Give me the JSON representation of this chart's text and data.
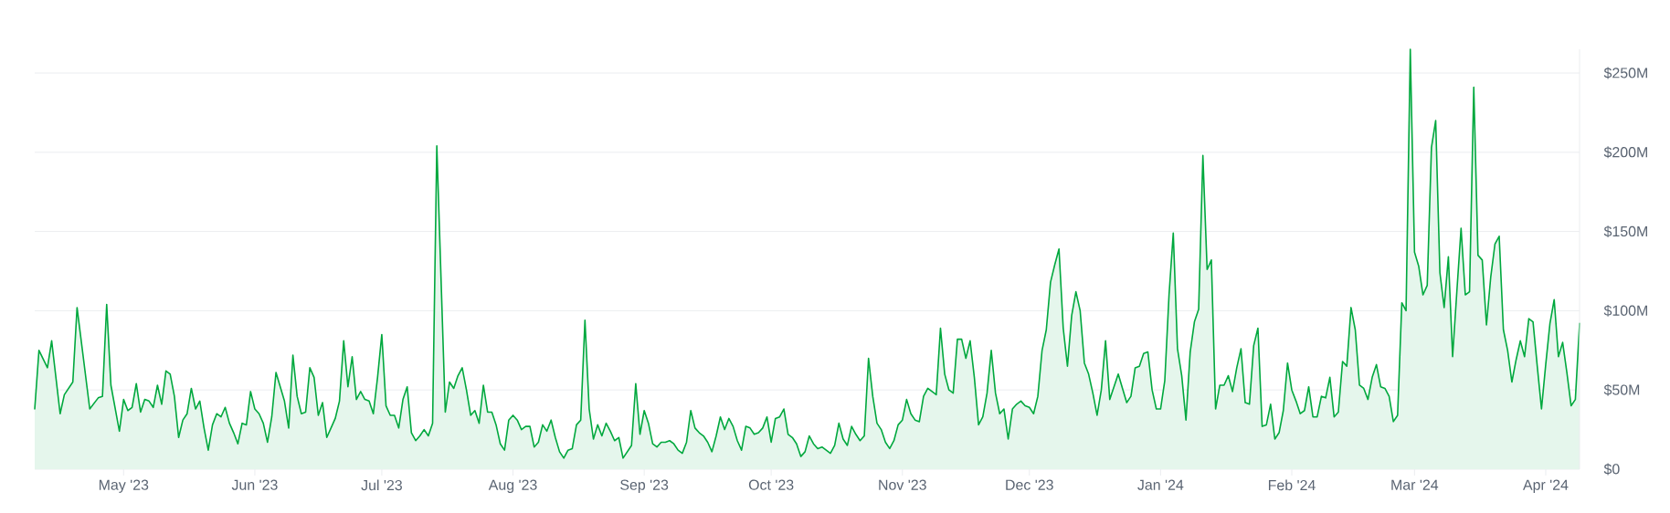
{
  "chart_data": {
    "type": "area",
    "x": [
      "2023-04-10",
      "2023-04-11",
      "2023-04-13",
      "2023-04-14",
      "2023-04-16",
      "2023-04-17",
      "2023-04-19",
      "2023-04-20",
      "2023-04-23",
      "2023-04-25",
      "2023-04-26",
      "2023-04-27",
      "2023-04-28",
      "2023-04-30",
      "2023-05-01",
      "2023-05-02",
      "2023-05-03",
      "2023-05-04",
      "2023-05-05",
      "2023-05-06",
      "2023-05-07",
      "2023-05-08",
      "2023-05-09",
      "2023-05-10",
      "2023-05-11",
      "2023-05-12",
      "2023-05-13",
      "2023-05-14",
      "2023-05-15",
      "2023-05-16",
      "2023-05-17",
      "2023-05-18",
      "2023-05-19",
      "2023-05-20",
      "2023-05-21",
      "2023-05-22",
      "2023-05-23",
      "2023-05-24",
      "2023-05-25",
      "2023-05-26",
      "2023-05-27",
      "2023-05-28",
      "2023-05-29",
      "2023-05-30",
      "2023-05-31",
      "2023-06-01",
      "2023-06-02",
      "2023-06-03",
      "2023-06-04",
      "2023-06-05",
      "2023-06-06",
      "2023-06-08",
      "2023-06-09",
      "2023-06-10",
      "2023-06-11",
      "2023-06-12",
      "2023-06-13",
      "2023-06-14",
      "2023-06-15",
      "2023-06-16",
      "2023-06-17",
      "2023-06-18",
      "2023-06-19",
      "2023-06-20",
      "2023-06-21",
      "2023-06-22",
      "2023-06-23",
      "2023-06-24",
      "2023-06-25",
      "2023-06-26",
      "2023-06-27",
      "2023-06-28",
      "2023-06-29",
      "2023-06-30",
      "2023-07-01",
      "2023-07-02",
      "2023-07-03",
      "2023-07-04",
      "2023-07-05",
      "2023-07-06",
      "2023-07-07",
      "2023-07-08",
      "2023-07-09",
      "2023-07-10",
      "2023-07-11",
      "2023-07-12",
      "2023-07-13",
      "2023-07-14",
      "2023-07-16",
      "2023-07-17",
      "2023-07-18",
      "2023-07-19",
      "2023-07-20",
      "2023-07-21",
      "2023-07-22",
      "2023-07-23",
      "2023-07-24",
      "2023-07-25",
      "2023-07-26",
      "2023-07-27",
      "2023-07-28",
      "2023-07-29",
      "2023-07-30",
      "2023-07-31",
      "2023-08-01",
      "2023-08-02",
      "2023-08-03",
      "2023-08-04",
      "2023-08-05",
      "2023-08-06",
      "2023-08-07",
      "2023-08-08",
      "2023-08-09",
      "2023-08-10",
      "2023-08-11",
      "2023-08-12",
      "2023-08-13",
      "2023-08-14",
      "2023-08-15",
      "2023-08-16",
      "2023-08-17",
      "2023-08-18",
      "2023-08-19",
      "2023-08-20",
      "2023-08-21",
      "2023-08-22",
      "2023-08-23",
      "2023-08-24",
      "2023-08-25",
      "2023-08-26",
      "2023-08-27",
      "2023-08-28",
      "2023-08-29",
      "2023-08-30",
      "2023-08-31",
      "2023-09-01",
      "2023-09-02",
      "2023-09-03",
      "2023-09-04",
      "2023-09-05",
      "2023-09-06",
      "2023-09-07",
      "2023-09-08",
      "2023-09-09",
      "2023-09-10",
      "2023-09-11",
      "2023-09-12",
      "2023-09-13",
      "2023-09-14",
      "2023-09-15",
      "2023-09-16",
      "2023-09-17",
      "2023-09-18",
      "2023-09-19",
      "2023-09-20",
      "2023-09-21",
      "2023-09-22",
      "2023-09-23",
      "2023-09-24",
      "2023-09-25",
      "2023-09-26",
      "2023-09-27",
      "2023-09-28",
      "2023-09-29",
      "2023-09-30",
      "2023-10-01",
      "2023-10-02",
      "2023-10-03",
      "2023-10-04",
      "2023-10-05",
      "2023-10-06",
      "2023-10-07",
      "2023-10-08",
      "2023-10-09",
      "2023-10-10",
      "2023-10-11",
      "2023-10-12",
      "2023-10-13",
      "2023-10-14",
      "2023-10-15",
      "2023-10-16",
      "2023-10-17",
      "2023-10-18",
      "2023-10-19",
      "2023-10-20",
      "2023-10-21",
      "2023-10-22",
      "2023-10-23",
      "2023-10-24",
      "2023-10-25",
      "2023-10-26",
      "2023-10-27",
      "2023-10-28",
      "2023-10-29",
      "2023-10-30",
      "2023-10-31",
      "2023-11-01",
      "2023-11-02",
      "2023-11-03",
      "2023-11-04",
      "2023-11-05",
      "2023-11-06",
      "2023-11-07",
      "2023-11-08",
      "2023-11-09",
      "2023-11-10",
      "2023-11-11",
      "2023-11-12",
      "2023-11-13",
      "2023-11-14",
      "2023-11-15",
      "2023-11-16",
      "2023-11-17",
      "2023-11-18",
      "2023-11-19",
      "2023-11-20",
      "2023-11-21",
      "2023-11-22",
      "2023-11-23",
      "2023-11-24",
      "2023-11-25",
      "2023-11-26",
      "2023-11-27",
      "2023-11-28",
      "2023-11-29",
      "2023-11-30",
      "2023-12-01",
      "2023-12-02",
      "2023-12-03",
      "2023-12-04",
      "2023-12-05",
      "2023-12-06",
      "2023-12-07",
      "2023-12-08",
      "2023-12-09",
      "2023-12-10",
      "2023-12-11",
      "2023-12-12",
      "2023-12-13",
      "2023-12-14",
      "2023-12-15",
      "2023-12-16",
      "2023-12-17",
      "2023-12-18",
      "2023-12-19",
      "2023-12-20",
      "2023-12-21",
      "2023-12-22",
      "2023-12-23",
      "2023-12-24",
      "2023-12-25",
      "2023-12-26",
      "2023-12-27",
      "2023-12-28",
      "2023-12-29",
      "2023-12-30",
      "2023-12-31",
      "2024-01-01",
      "2024-01-02",
      "2024-01-03",
      "2024-01-04",
      "2024-01-05",
      "2024-01-06",
      "2024-01-07",
      "2024-01-08",
      "2024-01-09",
      "2024-01-10",
      "2024-01-11",
      "2024-01-12",
      "2024-01-13",
      "2024-01-14",
      "2024-01-15",
      "2024-01-16",
      "2024-01-17",
      "2024-01-18",
      "2024-01-19",
      "2024-01-20",
      "2024-01-21",
      "2024-01-22",
      "2024-01-23",
      "2024-01-24",
      "2024-01-25",
      "2024-01-26",
      "2024-01-27",
      "2024-01-28",
      "2024-01-29",
      "2024-01-30",
      "2024-01-31",
      "2024-02-01",
      "2024-02-02",
      "2024-02-03",
      "2024-02-04",
      "2024-02-05",
      "2024-02-06",
      "2024-02-07",
      "2024-02-08",
      "2024-02-09",
      "2024-02-10",
      "2024-02-11",
      "2024-02-12",
      "2024-02-13",
      "2024-02-14",
      "2024-02-15",
      "2024-02-16",
      "2024-02-17",
      "2024-02-18",
      "2024-02-19",
      "2024-02-20",
      "2024-02-21",
      "2024-02-22",
      "2024-02-23",
      "2024-02-24",
      "2024-02-25",
      "2024-02-26",
      "2024-02-27",
      "2024-02-28",
      "2024-02-29",
      "2024-03-01",
      "2024-03-02",
      "2024-03-03",
      "2024-03-04",
      "2024-03-05",
      "2024-03-06",
      "2024-03-07",
      "2024-03-08",
      "2024-03-09",
      "2024-03-10",
      "2024-03-11",
      "2024-03-12",
      "2024-03-13",
      "2024-03-14",
      "2024-03-15",
      "2024-03-16",
      "2024-03-17",
      "2024-03-18",
      "2024-03-19",
      "2024-03-20",
      "2024-03-21",
      "2024-03-22",
      "2024-03-23",
      "2024-03-24",
      "2024-03-25",
      "2024-03-26",
      "2024-03-27",
      "2024-03-28",
      "2024-03-29",
      "2024-03-30",
      "2024-03-31",
      "2024-04-01",
      "2024-04-02",
      "2024-04-03",
      "2024-04-04",
      "2024-04-05",
      "2024-04-06",
      "2024-04-07",
      "2024-04-08",
      "2024-04-09"
    ],
    "series": [
      {
        "color": "#00a83e",
        "values": [
          38,
          75,
          64,
          81,
          35,
          47,
          55,
          102,
          38,
          45,
          46,
          104,
          53,
          24,
          44,
          37,
          39,
          54,
          36,
          44,
          43,
          39,
          53,
          41,
          62,
          60,
          46,
          20,
          31,
          35,
          51,
          38,
          43,
          26,
          12,
          28,
          35,
          33,
          39,
          29,
          23,
          16,
          29,
          28,
          49,
          38,
          35,
          29,
          17,
          33,
          61,
          43,
          26,
          72,
          46,
          35,
          36,
          64,
          58,
          34,
          42,
          20,
          26,
          32,
          43,
          81,
          52,
          71,
          44,
          49,
          44,
          43,
          35,
          58,
          85,
          40,
          34,
          34,
          26,
          44,
          52,
          23,
          18,
          21,
          25,
          21,
          29,
          204,
          36,
          55,
          51,
          59,
          64,
          50,
          34,
          37,
          29,
          53,
          36,
          36,
          28,
          16,
          12,
          31,
          34,
          31,
          25,
          27,
          27,
          14,
          17,
          28,
          24,
          31,
          20,
          11,
          7,
          12,
          13,
          28,
          31,
          94,
          38,
          19,
          28,
          21,
          29,
          24,
          18,
          20,
          7,
          11,
          15,
          54,
          22,
          37,
          29,
          16,
          14,
          17,
          17,
          18,
          16,
          12,
          10,
          17,
          37,
          26,
          23,
          21,
          17,
          11,
          21,
          33,
          25,
          32,
          27,
          18,
          12,
          27,
          26,
          22,
          23,
          26,
          33,
          17,
          32,
          33,
          38,
          22,
          20,
          16,
          8,
          11,
          21,
          16,
          13,
          14,
          12,
          10,
          15,
          29,
          19,
          15,
          27,
          22,
          18,
          21,
          70,
          46,
          29,
          25,
          17,
          13,
          18,
          28,
          31,
          44,
          35,
          31,
          30,
          46,
          51,
          49,
          47,
          89,
          60,
          50,
          48,
          82,
          82,
          70,
          81,
          58,
          28,
          33,
          48,
          75,
          48,
          35,
          38,
          19,
          38,
          41,
          43,
          40,
          39,
          35,
          46,
          75,
          88,
          118,
          129,
          139,
          89,
          65,
          97,
          112,
          100,
          67,
          60,
          48,
          34,
          50,
          81,
          44,
          52,
          60,
          51,
          42,
          46,
          64,
          65,
          73,
          74,
          50,
          38,
          38,
          56,
          110,
          149,
          76,
          59,
          31,
          74,
          93,
          101,
          198,
          126,
          132,
          38,
          53,
          53,
          59,
          49,
          64,
          76,
          42,
          41,
          78,
          89,
          27,
          28,
          41,
          19,
          23,
          37,
          67,
          50,
          43,
          35,
          37,
          52,
          33,
          33,
          46,
          45,
          58,
          33,
          36,
          68,
          65,
          102,
          88,
          53,
          51,
          44,
          58,
          66,
          52,
          51,
          46,
          30,
          34,
          105,
          100,
          265,
          137,
          128,
          110,
          116,
          203,
          220,
          124,
          102,
          134,
          71,
          112,
          152,
          110,
          112,
          241,
          135,
          132,
          91,
          121,
          142,
          147,
          88,
          75,
          55,
          69,
          81,
          71,
          95,
          93,
          65,
          38,
          66,
          92,
          107,
          71,
          80,
          61,
          40,
          44,
          92
        ]
      }
    ],
    "xlim": [
      "2023-04-10",
      "2024-04-09"
    ],
    "xticks": [
      {
        "value": "2023-05-01",
        "label": "May '23"
      },
      {
        "value": "2023-06-01",
        "label": "Jun '23"
      },
      {
        "value": "2023-07-01",
        "label": "Jul '23"
      },
      {
        "value": "2023-08-01",
        "label": "Aug '23"
      },
      {
        "value": "2023-09-01",
        "label": "Sep '23"
      },
      {
        "value": "2023-10-01",
        "label": "Oct '23"
      },
      {
        "value": "2023-11-01",
        "label": "Nov '23"
      },
      {
        "value": "2023-12-01",
        "label": "Dec '23"
      },
      {
        "value": "2024-01-01",
        "label": "Jan '24"
      },
      {
        "value": "2024-02-01",
        "label": "Feb '24"
      },
      {
        "value": "2024-03-01",
        "label": "Mar '24"
      },
      {
        "value": "2024-04-01",
        "label": "Apr '24"
      }
    ],
    "yticks": [
      {
        "value": 0,
        "label": "$0"
      },
      {
        "value": 50,
        "label": "$50M"
      },
      {
        "value": 100,
        "label": "$100M"
      },
      {
        "value": 150,
        "label": "$150M"
      },
      {
        "value": 200,
        "label": "$200M"
      },
      {
        "value": 250,
        "label": "$250M"
      }
    ],
    "ylim": [
      0,
      265
    ],
    "grid": "y"
  }
}
